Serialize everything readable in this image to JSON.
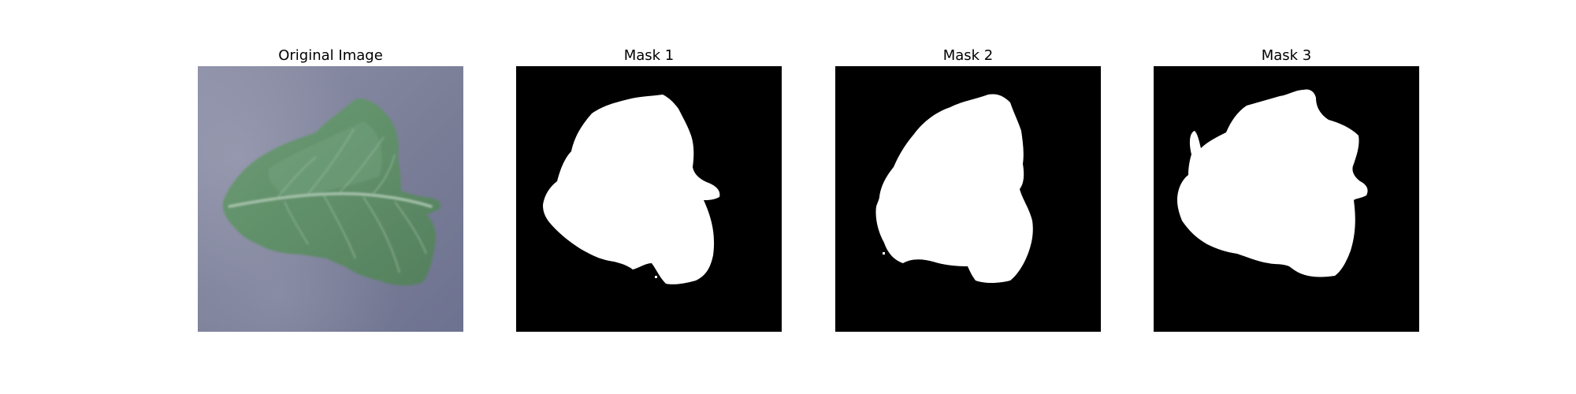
{
  "figure": {
    "background": "#ffffff",
    "panels": [
      {
        "title": "Original Image",
        "kind": "photo",
        "subject": "leaf-on-fabric"
      },
      {
        "title": "Mask 1",
        "kind": "mask"
      },
      {
        "title": "Mask 2",
        "kind": "mask"
      },
      {
        "title": "Mask 3",
        "kind": "mask"
      }
    ]
  },
  "colors": {
    "photo_background": "#7b7f98",
    "leaf_fill": "#5f8f68",
    "leaf_highlight": "#7ea889",
    "leaf_vein": "#a9c6af",
    "mask_background": "#000000",
    "mask_foreground": "#ffffff"
  }
}
